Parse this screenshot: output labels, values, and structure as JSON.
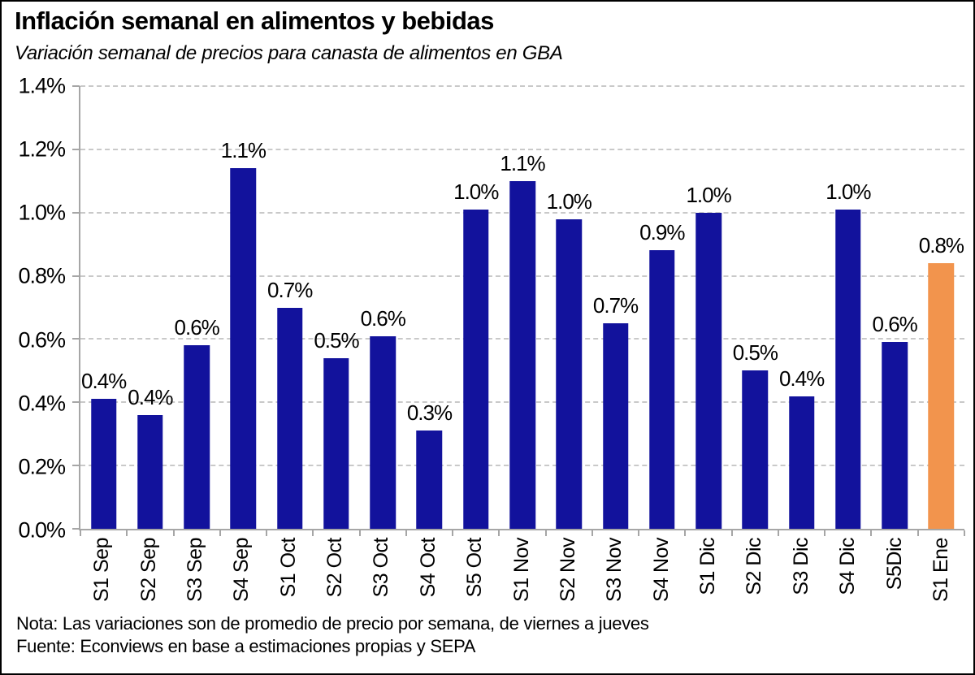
{
  "header": {
    "title": "Inflación semanal en alimentos y bebidas",
    "subtitle": "Variación semanal de precios para canasta de alimentos en GBA"
  },
  "footer": {
    "note": "Nota: Las variaciones son de promedio de precio por semana, de viernes a jueves",
    "source": "Fuente: Econviews en base a estimaciones propias y SEPA"
  },
  "colors": {
    "bar": "#12129C",
    "highlight": "#F2944D",
    "axis": "#a6a6a6",
    "gridline": "#c9c9c9",
    "text": "#000000"
  },
  "chart_data": {
    "type": "bar",
    "title": "Inflación semanal en alimentos y bebidas",
    "subtitle": "Variación semanal de precios para canasta de alimentos en GBA",
    "categories": [
      "S1 Sep",
      "S2 Sep",
      "S3 Sep",
      "S4 Sep",
      "S1 Oct",
      "S2 Oct",
      "S3 Oct",
      "S4 Oct",
      "S5 Oct",
      "S1 Nov",
      "S2 Nov",
      "S3 Nov",
      "S4 Nov",
      "S1 Dic",
      "S2 Dic",
      "S3 Dic",
      "S4 Dic",
      "S5Dic",
      "S1 Ene"
    ],
    "values": [
      0.41,
      0.36,
      0.58,
      1.14,
      0.7,
      0.54,
      0.61,
      0.31,
      1.01,
      1.1,
      0.98,
      0.65,
      0.88,
      1.0,
      0.5,
      0.42,
      1.01,
      0.59,
      0.84
    ],
    "bar_labels": [
      "0.4%",
      "0.4%",
      "0.6%",
      "1.1%",
      "0.7%",
      "0.5%",
      "0.6%",
      "0.3%",
      "1.0%",
      "1.1%",
      "1.0%",
      "0.7%",
      "0.9%",
      "1.0%",
      "0.5%",
      "0.4%",
      "1.0%",
      "0.6%",
      "0.8%"
    ],
    "highlight_index": 18,
    "bar_color": "#12129C",
    "highlight_color": "#F2944D",
    "xlabel": "",
    "ylabel": "",
    "ylim": [
      0,
      1.4
    ],
    "ytick_step": 0.2,
    "ytick_labels": [
      "0.0%",
      "0.2%",
      "0.4%",
      "0.6%",
      "0.8%",
      "1.0%",
      "1.2%",
      "1.4%"
    ],
    "grid": "horizontal-dashed",
    "legend": "none"
  }
}
